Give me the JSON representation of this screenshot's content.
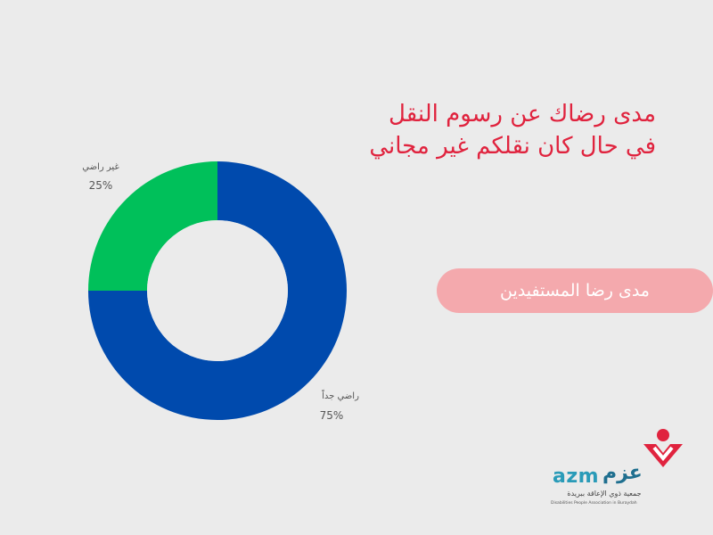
{
  "slide": {
    "title_line1": "مدى رضاك عن رسوم النقل",
    "title_line2": "في حال كان نقلكم غير مجاني",
    "pill_label": "مدى رضا المستفيدين",
    "title_color": "#e0233e",
    "pill_color": "#f4a9ad"
  },
  "logo": {
    "latin": "azm",
    "arabic": "عزم",
    "arabic_sub": "جمعية ذوي الإعاقة ببريدة",
    "english_sub": "Disabilities People Association in Buraydah",
    "colors": {
      "latin": "#2a9bb8",
      "mark": "#e0233e"
    }
  },
  "chart_data": {
    "type": "pie",
    "donut": true,
    "slices": [
      {
        "label": "راضي جداً",
        "value": 75,
        "value_label": "75%",
        "color": "#004aad"
      },
      {
        "label": "غير راضي",
        "value": 25,
        "value_label": "25%",
        "color": "#00c05a"
      }
    ]
  }
}
